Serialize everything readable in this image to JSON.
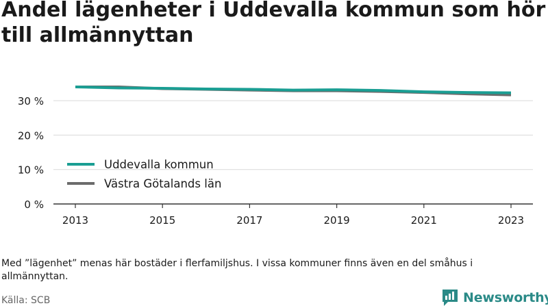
{
  "title": "Andel lägenheter i Uddevalla kommun som hör till allmännyttan",
  "note": "Med ”lägenhet” menas här bostäder i flerfamiljshus. I vissa kommuner finns även en del småhus i allmännyttan.",
  "source": "Källa: SCB",
  "brand": {
    "name": "Newsworthy"
  },
  "colors": {
    "uddevalla": "#1a9e93",
    "vastra_gotaland": "#6b6b6b",
    "brand": "#2a8a87"
  },
  "chart_data": {
    "type": "line",
    "title": "Andel lägenheter i Uddevalla kommun som hör till allmännyttan",
    "x": [
      2013,
      2014,
      2015,
      2016,
      2017,
      2018,
      2019,
      2020,
      2021,
      2022,
      2023
    ],
    "xticks": [
      "2013",
      "2015",
      "2017",
      "2019",
      "2021",
      "2023"
    ],
    "xlim": [
      2013,
      2023
    ],
    "yticks": [
      "0 %",
      "10 %",
      "20 %",
      "30 %"
    ],
    "ytick_values": [
      0,
      10,
      20,
      30
    ],
    "ylim": [
      0,
      35
    ],
    "grid": true,
    "legend_position": "bottom-left",
    "series": [
      {
        "name": "Uddevalla kommun",
        "color": "#1a9e93",
        "values": [
          34.0,
          33.7,
          33.6,
          33.4,
          33.3,
          33.1,
          33.2,
          33.0,
          32.6,
          32.4,
          32.3
        ]
      },
      {
        "name": "Västra Götalands län",
        "color": "#6b6b6b",
        "values": [
          34.0,
          34.0,
          33.5,
          33.3,
          33.1,
          32.9,
          32.9,
          32.7,
          32.4,
          32.0,
          31.7
        ]
      }
    ]
  }
}
